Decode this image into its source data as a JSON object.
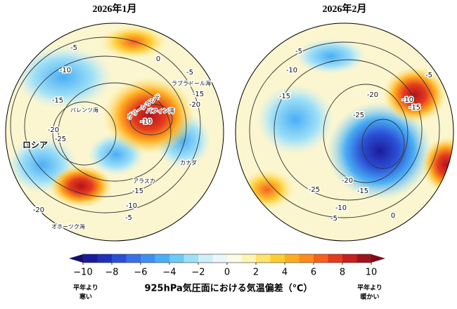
{
  "maps": [
    {
      "title": "2026年1月",
      "contour_labels": [
        "-5",
        "0",
        "-10",
        "-5",
        "-15",
        "-15",
        "-20",
        "-10",
        "-20",
        "-25",
        "-15",
        "-10",
        "-5",
        "-20"
      ],
      "place_labels": [
        "ラブラドール海",
        "グリーンランド",
        "バレンツ海",
        "バフィン湾",
        "ロシア",
        "カナダ",
        "アラスカ",
        "オホーツク海"
      ]
    },
    {
      "title": "2026年2月",
      "contour_labels": [
        "-5",
        "-10",
        "-5",
        "-15",
        "-20",
        "-10",
        "-15",
        "-25",
        "-25",
        "-20",
        "-15",
        "-10",
        "-5",
        "0"
      ],
      "place_labels": []
    }
  ],
  "colorbar": {
    "ticks": [
      {
        "value": -10,
        "label": "−10"
      },
      {
        "value": -8,
        "label": "−8"
      },
      {
        "value": -6,
        "label": "−6"
      },
      {
        "value": -4,
        "label": "−4"
      },
      {
        "value": -2,
        "label": "−2"
      },
      0,
      2,
      4,
      6,
      8,
      10
    ],
    "lim": [
      -10,
      10
    ],
    "colors": [
      "#1c1c9a",
      "#2030b8",
      "#2a4fd6",
      "#3a6fe6",
      "#3f8ef0",
      "#4aaef5",
      "#6ccaf7",
      "#9fe0f7",
      "#cdeff7",
      "#eaf8fb",
      "#fbfbe6",
      "#fff5b0",
      "#ffe46a",
      "#ffcc33",
      "#ffad20",
      "#ff8a1e",
      "#f5621e",
      "#e43a1e",
      "#c8201e",
      "#9e141e"
    ],
    "under_color": "#150e6e",
    "over_color": "#7e0c16",
    "title": "925hPa気圧面における気温偏差（℃）",
    "left_label": [
      "平年より",
      "寒い"
    ],
    "right_label": [
      "平年より",
      "暖かい"
    ]
  }
}
